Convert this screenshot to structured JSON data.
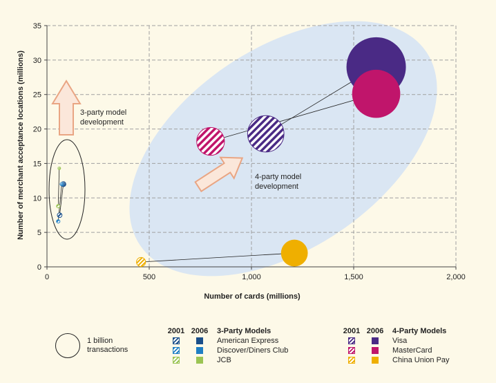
{
  "chart_data": {
    "type": "scatter",
    "subtype": "bubble",
    "xlabel": "Number of cards (millions)",
    "ylabel": "Number of merchant acceptance locations (millions)",
    "xlim": [
      0,
      2000
    ],
    "ylim": [
      0,
      35
    ],
    "x_ticks": [
      0,
      500,
      1000,
      1500,
      2000
    ],
    "x_tick_labels": [
      "0",
      "500",
      "1,000",
      "1,500",
      "2,000"
    ],
    "y_ticks": [
      0,
      5,
      10,
      15,
      20,
      25,
      30,
      35
    ],
    "y_tick_labels": [
      "0",
      "5",
      "10",
      "15",
      "20",
      "25",
      "30",
      "35"
    ],
    "grid": true,
    "series": [
      {
        "name": "American Express",
        "model": "3-Party",
        "color": "#1a4f8a",
        "points": [
          {
            "year": "2001",
            "x": 62,
            "y": 7.5,
            "size": 0.04
          },
          {
            "year": "2006",
            "x": 80,
            "y": 12,
            "size": 0.06
          }
        ]
      },
      {
        "name": "Discover/Diners Club",
        "model": "3-Party",
        "color": "#1f7fc4",
        "points": [
          {
            "year": "2001",
            "x": 55,
            "y": 6.6,
            "size": 0.01
          },
          {
            "year": "2006",
            "x": 72,
            "y": 12,
            "size": 0.03
          }
        ]
      },
      {
        "name": "JCB",
        "model": "3-Party",
        "color": "#9bc453",
        "points": [
          {
            "year": "2001",
            "x": 55,
            "y": 8.8,
            "size": 0.004
          },
          {
            "year": "2006",
            "x": 60,
            "y": 14.3,
            "size": 0.005
          }
        ]
      },
      {
        "name": "Visa",
        "model": "4-Party",
        "color": "#4a2a85",
        "points": [
          {
            "year": "2001",
            "x": 1070,
            "y": 19.3,
            "size": 2.4
          },
          {
            "year": "2006",
            "x": 1610,
            "y": 29,
            "size": 6.4
          }
        ]
      },
      {
        "name": "MasterCard",
        "model": "4-Party",
        "color": "#c0156b",
        "points": [
          {
            "year": "2001",
            "x": 800,
            "y": 18.2,
            "size": 1.4
          },
          {
            "year": "2006",
            "x": 1610,
            "y": 25.1,
            "size": 4.2
          }
        ]
      },
      {
        "name": "China Union Pay",
        "model": "4-Party",
        "color": "#efaf00",
        "points": [
          {
            "year": "2001",
            "x": 460,
            "y": 0.7,
            "size": 0.15
          },
          {
            "year": "2006",
            "x": 1210,
            "y": 2.0,
            "size": 1.3
          }
        ]
      }
    ],
    "annotations": [
      {
        "text_lines": [
          "3-party model",
          "development"
        ]
      },
      {
        "text_lines": [
          "4-party model",
          "development"
        ]
      }
    ],
    "size_legend": {
      "label_lines": [
        "1 billion",
        "transactions"
      ],
      "value": 1.0
    },
    "legend": {
      "year_headers": [
        "2001",
        "2006"
      ],
      "three_party_title": "3-Party Models",
      "four_party_title": "4-Party Models",
      "three_party": [
        "American Express",
        "Discover/Diners Club",
        "JCB"
      ],
      "four_party": [
        "Visa",
        "MasterCard",
        "China Union Pay"
      ]
    }
  },
  "colors": {
    "background": "#fdf9e8",
    "ellipse_4party": "#d6e3f4",
    "arrow_fill": "#fbe7da",
    "arrow_stroke": "#e9a583",
    "grid": "#a0a0a0"
  }
}
